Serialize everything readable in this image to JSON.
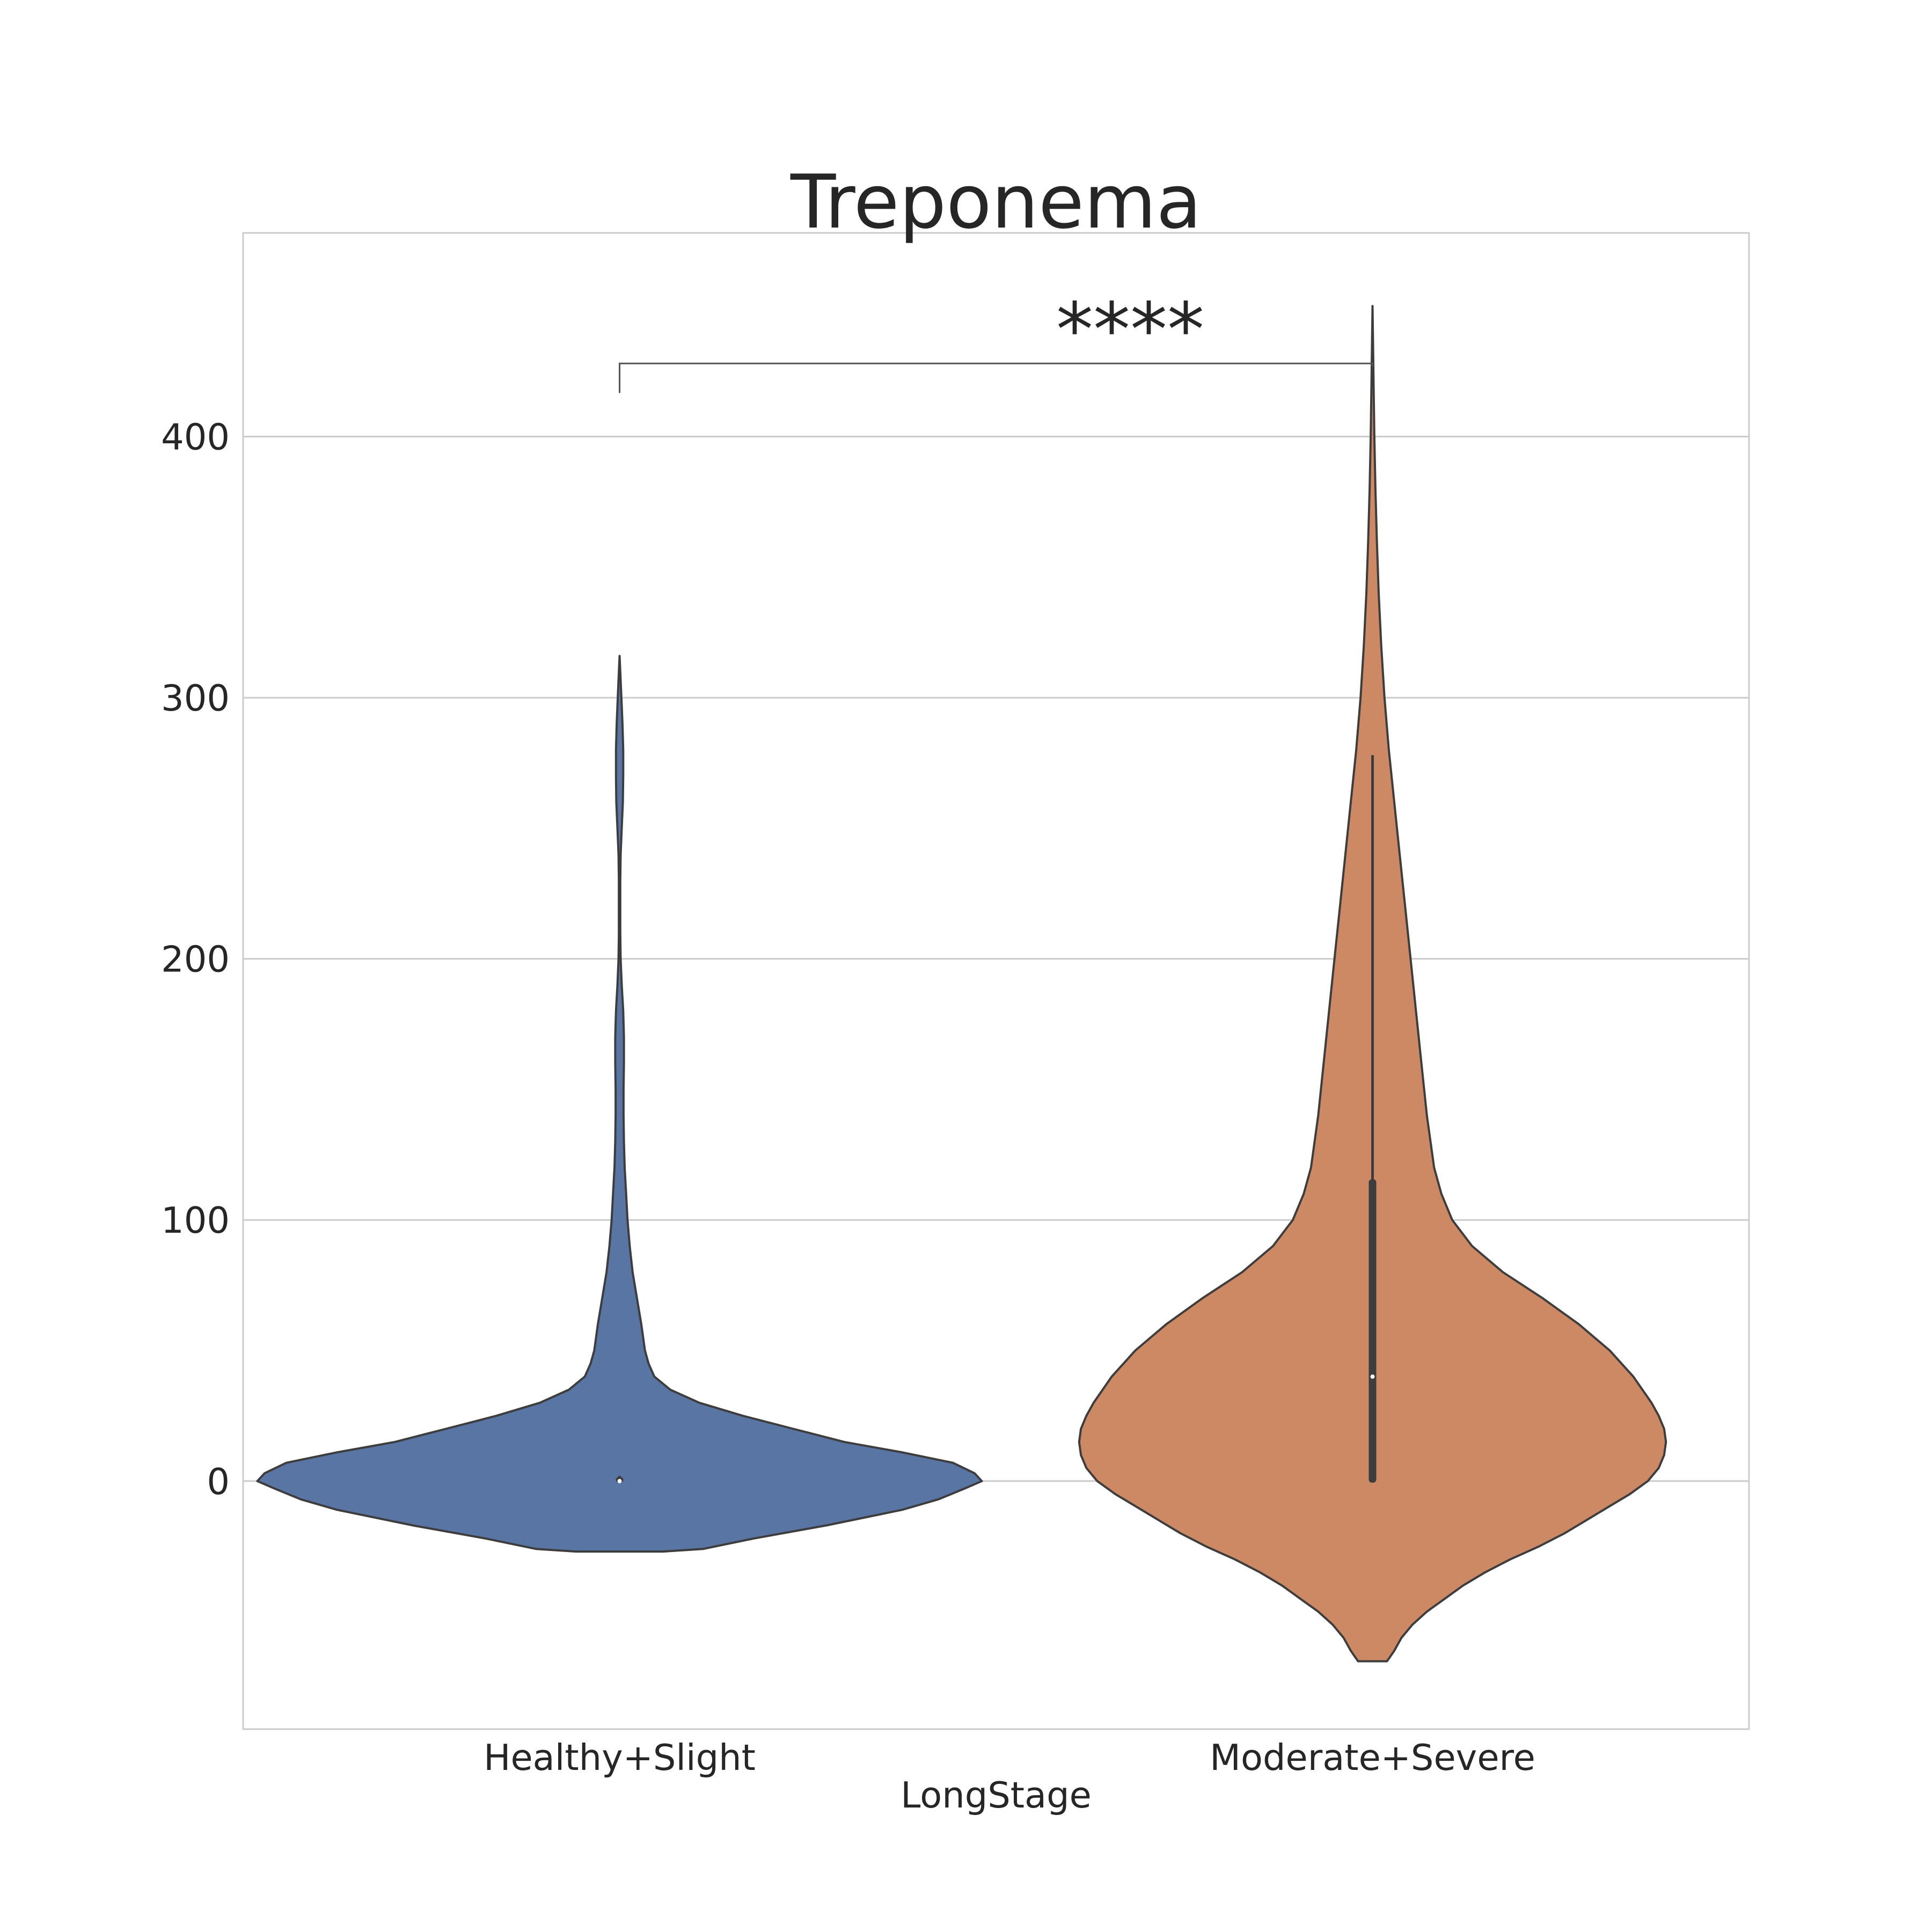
{
  "chart_data": {
    "type": "violin",
    "title": "Treponema",
    "xlabel": "LongStage",
    "ylabel": "",
    "ylim": [
      -95,
      478
    ],
    "yticks": [
      0,
      100,
      200,
      300,
      400
    ],
    "grid": "horizontal",
    "categories": [
      "Healthy+Slight",
      "Moderate+Severe"
    ],
    "series": [
      {
        "category": "Healthy+Slight",
        "color": "#5975a4",
        "range": [
          -27,
          316
        ],
        "q1": 0,
        "median": 0,
        "q3": 1,
        "whisker": [
          0,
          2
        ],
        "density": [
          [
            -27,
            0.12
          ],
          [
            -26,
            0.23
          ],
          [
            -22,
            0.37
          ],
          [
            -17,
            0.57
          ],
          [
            -11,
            0.78
          ],
          [
            -7,
            0.88
          ],
          [
            -3,
            0.95
          ],
          [
            0,
            1.0
          ],
          [
            3,
            0.98
          ],
          [
            7,
            0.92
          ],
          [
            11,
            0.78
          ],
          [
            15,
            0.62
          ],
          [
            20,
            0.48
          ],
          [
            25,
            0.34
          ],
          [
            30,
            0.22
          ],
          [
            35,
            0.14
          ],
          [
            40,
            0.096
          ],
          [
            45,
            0.08
          ],
          [
            50,
            0.07
          ],
          [
            60,
            0.06
          ],
          [
            70,
            0.048
          ],
          [
            80,
            0.036
          ],
          [
            90,
            0.028
          ],
          [
            100,
            0.022
          ],
          [
            110,
            0.018
          ],
          [
            120,
            0.014
          ],
          [
            130,
            0.012
          ],
          [
            140,
            0.011
          ],
          [
            150,
            0.011
          ],
          [
            160,
            0.012
          ],
          [
            170,
            0.012
          ],
          [
            180,
            0.01
          ],
          [
            190,
            0.006
          ],
          [
            200,
            0.003
          ],
          [
            210,
            0.002
          ],
          [
            220,
            0.002
          ],
          [
            230,
            0.002
          ],
          [
            240,
            0.003
          ],
          [
            250,
            0.006
          ],
          [
            260,
            0.009
          ],
          [
            270,
            0.01
          ],
          [
            280,
            0.01
          ],
          [
            290,
            0.008
          ],
          [
            300,
            0.005
          ],
          [
            310,
            0.002
          ],
          [
            316,
            0.0
          ]
        ]
      },
      {
        "category": "Moderate+Severe",
        "color": "#cc8963",
        "range": [
          -69,
          450
        ],
        "q1": 0,
        "median": 40,
        "q3": 115,
        "whisker": [
          0,
          278
        ],
        "density": [
          [
            -69,
            0.04
          ],
          [
            -65,
            0.06
          ],
          [
            -60,
            0.08
          ],
          [
            -55,
            0.11
          ],
          [
            -50,
            0.15
          ],
          [
            -45,
            0.2
          ],
          [
            -40,
            0.25
          ],
          [
            -35,
            0.31
          ],
          [
            -30,
            0.38
          ],
          [
            -25,
            0.46
          ],
          [
            -20,
            0.53
          ],
          [
            -15,
            0.59
          ],
          [
            -10,
            0.65
          ],
          [
            -5,
            0.71
          ],
          [
            0,
            0.76
          ],
          [
            5,
            0.79
          ],
          [
            10,
            0.805
          ],
          [
            15,
            0.81
          ],
          [
            20,
            0.805
          ],
          [
            25,
            0.79
          ],
          [
            30,
            0.77
          ],
          [
            40,
            0.72
          ],
          [
            50,
            0.655
          ],
          [
            60,
            0.57
          ],
          [
            70,
            0.47
          ],
          [
            80,
            0.36
          ],
          [
            90,
            0.275
          ],
          [
            100,
            0.22
          ],
          [
            110,
            0.19
          ],
          [
            120,
            0.17
          ],
          [
            140,
            0.15
          ],
          [
            160,
            0.135
          ],
          [
            180,
            0.12
          ],
          [
            200,
            0.105
          ],
          [
            220,
            0.09
          ],
          [
            240,
            0.075
          ],
          [
            260,
            0.06
          ],
          [
            280,
            0.045
          ],
          [
            300,
            0.033
          ],
          [
            320,
            0.024
          ],
          [
            340,
            0.017
          ],
          [
            360,
            0.012
          ],
          [
            380,
            0.008
          ],
          [
            400,
            0.005
          ],
          [
            420,
            0.003
          ],
          [
            440,
            0.001
          ],
          [
            450,
            0.0
          ]
        ]
      }
    ],
    "annotations": [
      {
        "text": "****",
        "x_from": "Healthy+Slight",
        "x_to": "Moderate+Severe",
        "y": 428
      }
    ]
  }
}
